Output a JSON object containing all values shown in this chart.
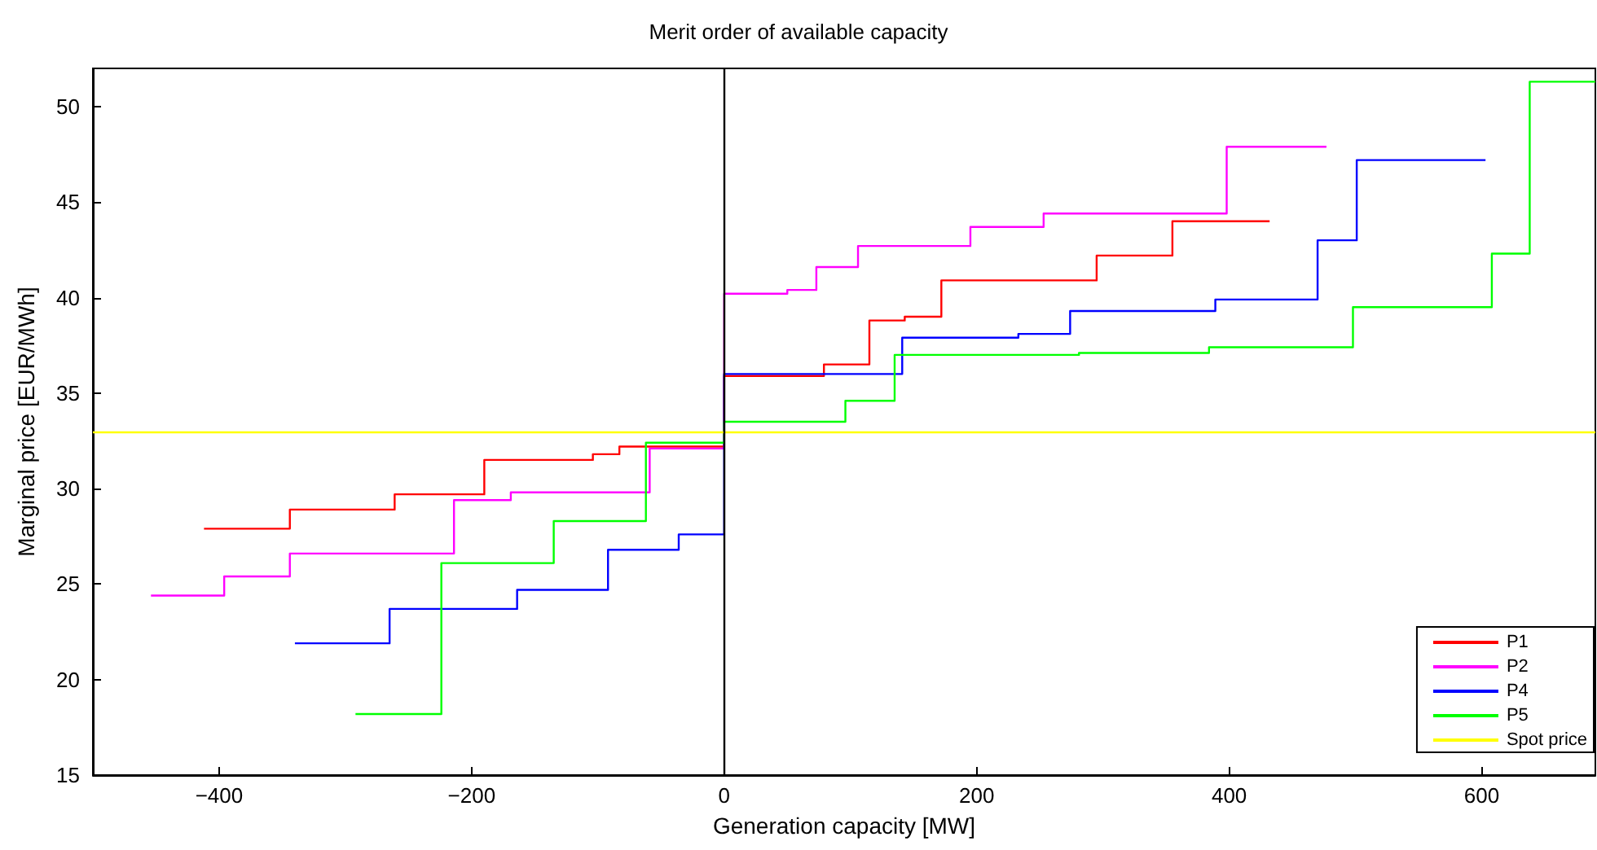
{
  "chart_data": {
    "type": "step",
    "title": "Merit order of available capacity",
    "xlabel": "Generation capacity [MW]",
    "ylabel": "Marginal price [EUR/MWh]",
    "xlim": [
      -500,
      690
    ],
    "xticks": [
      -400,
      -200,
      0,
      200,
      400,
      600
    ],
    "ylim": [
      15,
      52
    ],
    "yticks": [
      15,
      20,
      25,
      30,
      35,
      40,
      45,
      50
    ],
    "grid": false,
    "legend": "bottom right",
    "marker": "none",
    "series": [
      {
        "name": "P1",
        "color": "#ff0000",
        "x": [
          -412,
          -344,
          -261,
          -190,
          -104,
          -83,
          0,
          0,
          79,
          115,
          143,
          172,
          295,
          355,
          432
        ],
        "values": [
          27.9,
          28.9,
          29.7,
          31.5,
          31.8,
          32.2,
          32.2,
          35.9,
          36.5,
          38.8,
          39,
          40.9,
          42.2,
          44,
          44
        ]
      },
      {
        "name": "P2",
        "color": "#ff00ff",
        "x": [
          -454,
          -396,
          -344,
          -214,
          -169,
          -59,
          0,
          0,
          50,
          73,
          106,
          195,
          253,
          398,
          477
        ],
        "values": [
          24.4,
          25.4,
          26.6,
          29.4,
          29.8,
          32.1,
          32.1,
          40.2,
          40.4,
          41.6,
          42.7,
          43.7,
          44.4,
          47.9,
          47.9
        ]
      },
      {
        "name": "P4",
        "color": "#0000ff",
        "x": [
          -340,
          -265,
          -164,
          -92,
          -36,
          0,
          0,
          141,
          233,
          274,
          389,
          470,
          501,
          603
        ],
        "values": [
          21.9,
          23.7,
          24.7,
          26.8,
          27.6,
          27.6,
          36,
          37.9,
          38.1,
          39.3,
          39.9,
          43,
          47.2,
          47.2
        ]
      },
      {
        "name": "P5",
        "color": "#00ff00",
        "x": [
          -292,
          -224,
          -135,
          -62,
          0,
          0,
          96,
          135,
          281,
          384,
          498,
          608,
          638,
          690
        ],
        "values": [
          18.2,
          26.1,
          28.3,
          32.4,
          32.4,
          33.5,
          34.6,
          37,
          37.1,
          37.4,
          39.5,
          42.3,
          51.3,
          51.3
        ]
      }
    ],
    "ref_lines": [
      {
        "axis": "y",
        "value": 33,
        "label": "Spot price",
        "color": "#ffff00"
      },
      {
        "axis": "x",
        "value": 0,
        "label": null,
        "color": "#000000"
      }
    ]
  }
}
